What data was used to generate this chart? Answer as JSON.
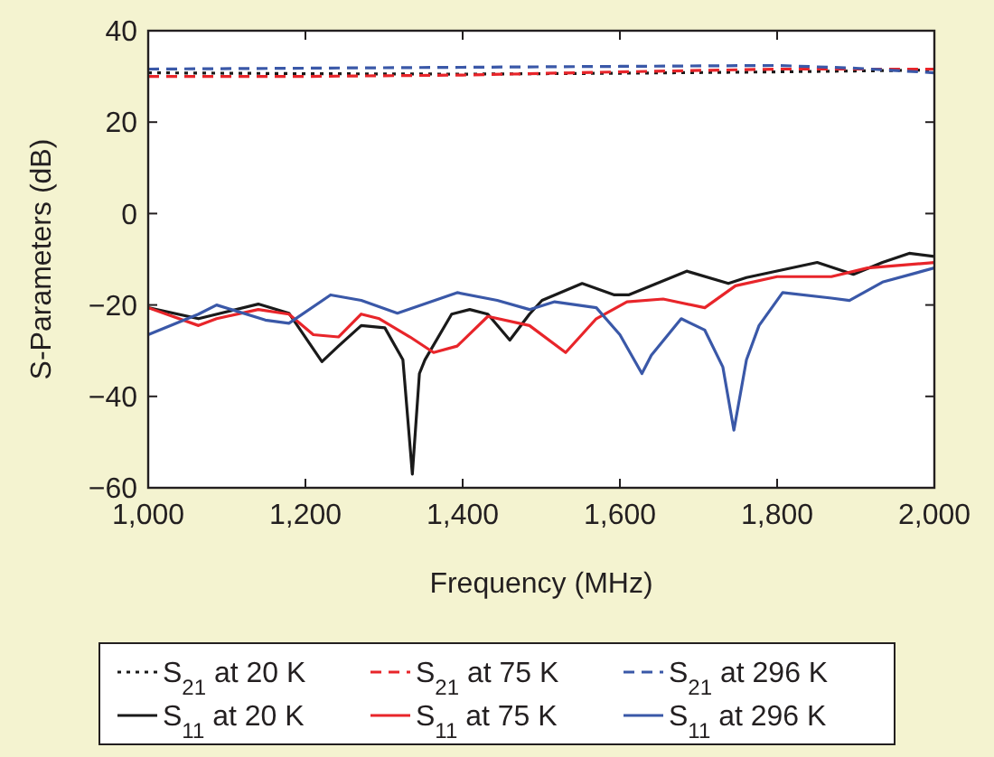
{
  "chart_data": {
    "type": "line",
    "xlabel": "Frequency (MHz)",
    "ylabel": "S-Parameters (dB)",
    "xlim": [
      1000,
      2000
    ],
    "ylim": [
      -60,
      40
    ],
    "xticks": [
      {
        "value": 1000,
        "label": "1,000"
      },
      {
        "value": 1200,
        "label": "1,200"
      },
      {
        "value": 1400,
        "label": "1,400"
      },
      {
        "value": 1600,
        "label": "1,600"
      },
      {
        "value": 1800,
        "label": "1,800"
      },
      {
        "value": 2000,
        "label": "2,000"
      }
    ],
    "yticks": [
      {
        "value": -60,
        "label": "−60"
      },
      {
        "value": -40,
        "label": "−40"
      },
      {
        "value": -20,
        "label": "−20"
      },
      0,
      20,
      40
    ],
    "grid": false,
    "legend": "bottom",
    "marker": "none",
    "series": [
      {
        "name": "S$_{21}$ at 20 K",
        "color": "#1a1a1a",
        "line_style": "dotted",
        "x": [
          1000,
          1200,
          1400,
          1600,
          1800,
          1900,
          2000
        ],
        "values": [
          30.8,
          30.6,
          30.5,
          30.7,
          31,
          31.2,
          31.4
        ]
      },
      {
        "name": "S$_{21}$ at 75 K",
        "color": "#e8252a",
        "line_style": "dashed",
        "x": [
          1000,
          1200,
          1400,
          1600,
          1800,
          1900,
          2000
        ],
        "values": [
          30,
          30,
          30.3,
          31,
          31.6,
          31.6,
          31.6
        ]
      },
      {
        "name": "S$_{21}$ at 296 K",
        "color": "#3a58a8",
        "line_style": "dashed",
        "x": [
          1000,
          1200,
          1400,
          1600,
          1800,
          1900,
          2000
        ],
        "values": [
          31.6,
          31.8,
          32,
          32.2,
          32.4,
          31.8,
          30.8
        ]
      },
      {
        "name": "S$_{11}$ at 20 K",
        "color": "#1a1a1a",
        "line_style": "solid",
        "x": [
          1000,
          1064,
          1140,
          1179,
          1221,
          1242,
          1271,
          1301,
          1324,
          1336,
          1345,
          1352,
          1386,
          1409,
          1432,
          1460,
          1485,
          1501,
          1552,
          1593,
          1611,
          1685,
          1738,
          1761,
          1851,
          1897,
          1934,
          1968,
          2000
        ],
        "values": [
          -20.6,
          -23,
          -19.8,
          -21.8,
          -32.4,
          -29,
          -24.5,
          -25,
          -32,
          -57,
          -35,
          -32,
          -22,
          -21,
          -22,
          -27.7,
          -22,
          -19,
          -15.3,
          -17.8,
          -17.8,
          -12.6,
          -15.3,
          -14,
          -10.7,
          -13.3,
          -10.7,
          -8.7,
          -9.4
        ]
      },
      {
        "name": "S$_{11}$ at 75 K",
        "color": "#e8252a",
        "line_style": "solid",
        "x": [
          1000,
          1064,
          1087,
          1140,
          1179,
          1210,
          1242,
          1271,
          1294,
          1333,
          1363,
          1393,
          1432,
          1485,
          1531,
          1570,
          1609,
          1655,
          1708,
          1747,
          1800,
          1869,
          1915,
          2000
        ],
        "values": [
          -20.6,
          -24.5,
          -23,
          -21,
          -22,
          -26.5,
          -27,
          -22,
          -23,
          -27,
          -30.4,
          -29,
          -22.5,
          -24.5,
          -30.4,
          -23,
          -19.3,
          -18.7,
          -20.6,
          -15.8,
          -13.8,
          -13.8,
          -11.9,
          -10.7
        ]
      },
      {
        "name": "S$_{11}$ at 296 K",
        "color": "#3a58a8",
        "line_style": "solid",
        "x": [
          1000,
          1064,
          1087,
          1149,
          1179,
          1232,
          1271,
          1317,
          1393,
          1444,
          1485,
          1517,
          1570,
          1600,
          1628,
          1640,
          1678,
          1708,
          1731,
          1745,
          1761,
          1777,
          1807,
          1869,
          1892,
          1934,
          2000
        ],
        "values": [
          -26.5,
          -22,
          -20,
          -23.3,
          -24,
          -17.8,
          -19,
          -21.8,
          -17.3,
          -19,
          -21,
          -19.3,
          -20.6,
          -26.5,
          -35,
          -31,
          -23,
          -25.5,
          -33.6,
          -47.4,
          -32,
          -24.5,
          -17.3,
          -18.5,
          -19,
          -15,
          -11.9
        ]
      }
    ]
  }
}
